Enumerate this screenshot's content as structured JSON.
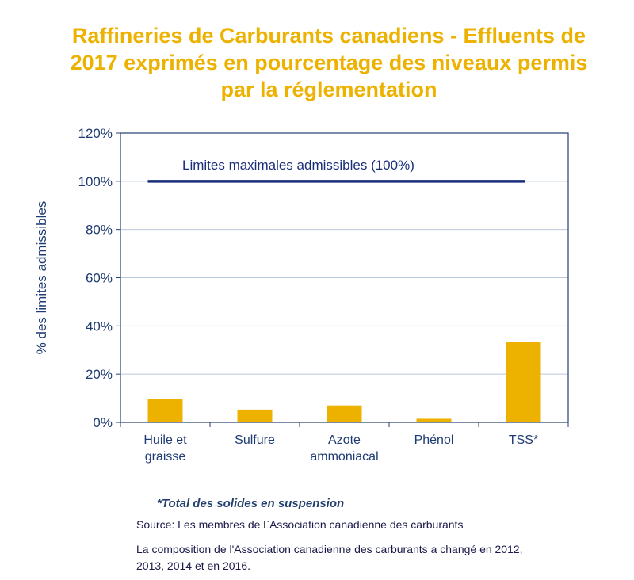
{
  "title_lines": [
    "Raffineries de Carburants canadiens - Effluents de",
    "2017 exprimés en pourcentage des niveaux permis",
    "par la réglementation"
  ],
  "footnote": "*Total des solides en suspension",
  "source": "Source: Les membres de l`Association canadienne des carburants",
  "composition_note": "La composition de l'Association canadienne des carburants a changé en 2012, 2013, 2014 et en 2016.",
  "colors": {
    "title": "#EDB100",
    "bar": "#EDB100",
    "limit_line": "#1A2F7A",
    "axis_text": "#1F3B73",
    "grid": "#B9C7DA",
    "frame": "#24406F"
  },
  "chart_data": {
    "type": "bar",
    "title": "Raffineries de Carburants canadiens - Effluents de 2017 exprimés en pourcentage des niveaux permis par la réglementation",
    "categories": [
      [
        "Huile et",
        "graisse"
      ],
      [
        "Sulfure"
      ],
      [
        "Azote",
        "ammoniacal"
      ],
      [
        "Phénol"
      ],
      [
        "TSS*"
      ]
    ],
    "values": [
      9.7,
      5.3,
      7.0,
      1.5,
      33.2
    ],
    "ylabel": "% des limites admissibles",
    "xlabel": "",
    "ylim": [
      0,
      120
    ],
    "yticks": [
      0,
      20,
      40,
      60,
      80,
      100,
      120
    ],
    "ytick_labels": [
      "0%",
      "20%",
      "40%",
      "60%",
      "80%",
      "100%",
      "120%"
    ],
    "grid": true,
    "reference_line": {
      "value": 100,
      "label": "Limites maximales admissibles (100%)",
      "from_category": 0,
      "to_category": 4
    }
  }
}
